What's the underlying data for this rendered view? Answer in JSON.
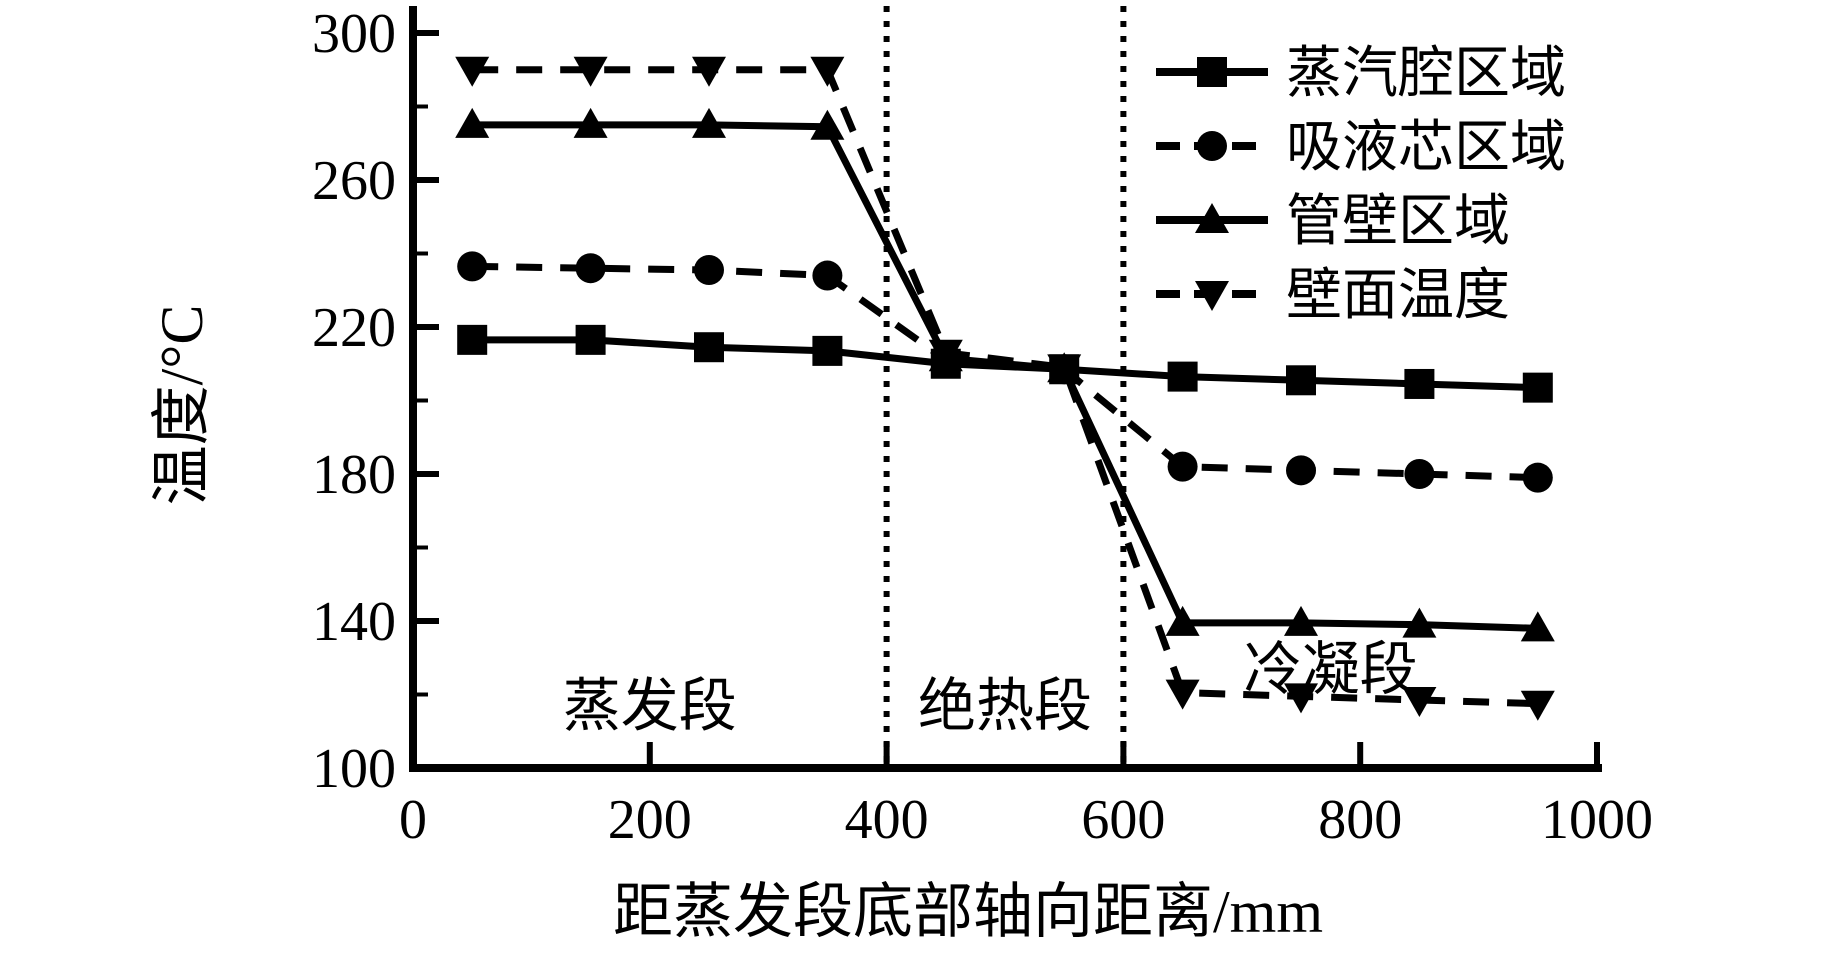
{
  "figure": {
    "background_color": "#ffffff",
    "foreground_color": "#000000"
  },
  "chart_data": {
    "type": "line",
    "title": "",
    "xlabel": "距蒸发段底部轴向距离/mm",
    "ylabel": "温度/°C",
    "xlim": [
      0,
      1000
    ],
    "ylim": [
      100,
      300
    ],
    "x_ticks": [
      0,
      200,
      400,
      600,
      800,
      1000
    ],
    "y_ticks": [
      100,
      140,
      180,
      220,
      260,
      300
    ],
    "y_minor_ticks": [
      120,
      160,
      200,
      240,
      280
    ],
    "grid": false,
    "legend_position": "top-right",
    "x": [
      50,
      150,
      250,
      350,
      450,
      550,
      650,
      750,
      850,
      950
    ],
    "series": [
      {
        "id": "steam-chamber",
        "name": "蒸汽腔区域",
        "marker": "square",
        "line": "solid",
        "values": [
          216.5,
          216.5,
          214.5,
          213.5,
          210,
          208.5,
          206.5,
          205.5,
          204.5,
          203.5
        ]
      },
      {
        "id": "wick",
        "name": "吸液芯区域",
        "marker": "circle",
        "line": "dashed",
        "values": [
          236.5,
          236,
          235.5,
          234,
          211,
          208.5,
          182,
          181,
          180,
          179
        ]
      },
      {
        "id": "tube-wall",
        "name": "管壁区域",
        "marker": "triangle-up",
        "line": "solid",
        "values": [
          275,
          275,
          275,
          274.5,
          211.5,
          208.5,
          139.5,
          139.5,
          139,
          138
        ]
      },
      {
        "id": "wall-temperature",
        "name": "壁面温度",
        "marker": "triangle-down",
        "line": "dashed",
        "values": [
          290,
          290,
          290,
          290,
          213,
          209,
          120.5,
          119.5,
          118.5,
          117.5
        ]
      }
    ],
    "region_boundaries_mm": [
      400,
      600
    ],
    "annotations": [
      {
        "id": "evaporation-section",
        "text": "蒸发段",
        "x_mm": 200,
        "temp_c": 117
      },
      {
        "id": "adiabatic-section",
        "text": "绝热段",
        "x_mm": 500,
        "temp_c": 117
      },
      {
        "id": "condensation-section",
        "text": "冷凝段",
        "x_mm": 775,
        "temp_c": 127
      }
    ]
  }
}
